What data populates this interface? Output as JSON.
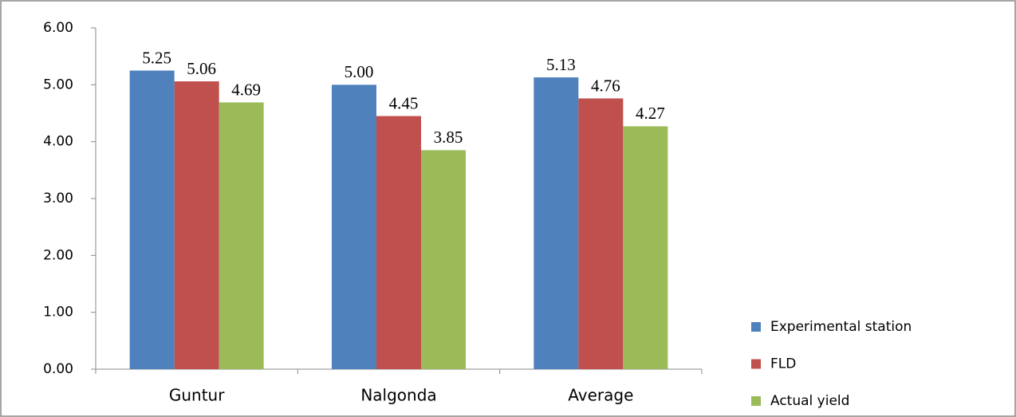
{
  "chart_data": {
    "type": "bar",
    "categories": [
      "Guntur",
      "Nalgonda",
      "Average"
    ],
    "series": [
      {
        "name": "Experimental station",
        "color": "#4f81bd",
        "values": [
          5.25,
          5.0,
          5.13
        ],
        "value_labels": [
          "5.25",
          "5.00",
          "5.13"
        ]
      },
      {
        "name": "FLD",
        "color": "#c0504d",
        "values": [
          5.06,
          4.45,
          4.76
        ],
        "value_labels": [
          "5.06",
          "4.45",
          "4.76"
        ]
      },
      {
        "name": "Actual yield",
        "color": "#9bbb59",
        "values": [
          4.69,
          3.85,
          4.27
        ],
        "value_labels": [
          "4.69",
          "3.85",
          "4.27"
        ]
      }
    ],
    "ylim": [
      0,
      6
    ],
    "yticks": [
      {
        "value": 0,
        "label": "0.00"
      },
      {
        "value": 1,
        "label": "1.00"
      },
      {
        "value": 2,
        "label": "2.00"
      },
      {
        "value": 3,
        "label": "3.00"
      },
      {
        "value": 4,
        "label": "4.00"
      },
      {
        "value": 5,
        "label": "5.00"
      },
      {
        "value": 6,
        "label": "6.00"
      }
    ],
    "legend": "right"
  }
}
